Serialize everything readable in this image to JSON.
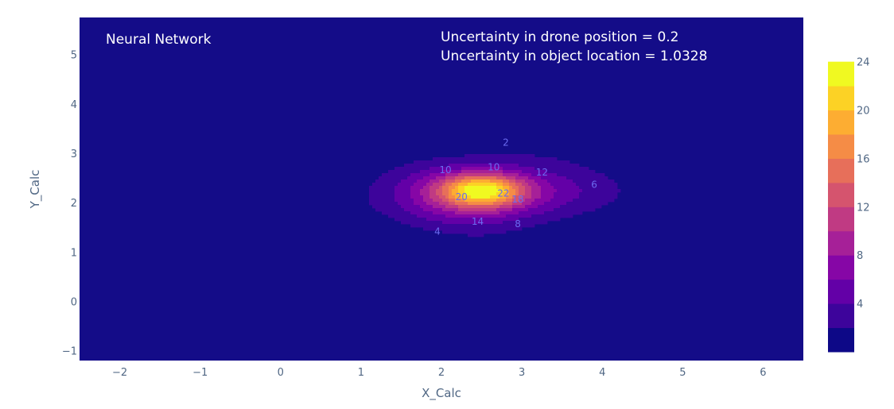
{
  "chart_data": {
    "type": "contour",
    "title": "",
    "xlabel": "X_Calc",
    "ylabel": "Y_Calc",
    "xlim": [
      -2.5,
      6.5
    ],
    "ylim": [
      -1.2,
      5.75
    ],
    "x_ticks": [
      -2,
      -1,
      0,
      1,
      2,
      3,
      4,
      5,
      6
    ],
    "y_ticks": [
      -1,
      0,
      1,
      2,
      3,
      4,
      5
    ],
    "background_color": "#140c88",
    "colorscale": "plasma",
    "colorbar": {
      "range": [
        0,
        27
      ],
      "levels": [
        2,
        4,
        6,
        8,
        10,
        12,
        14,
        16,
        18,
        20,
        22,
        24,
        26
      ],
      "tick_labels": [
        "4",
        "8",
        "12",
        "16",
        "20",
        "24"
      ],
      "colors": [
        "#0d0887",
        "#3d049b",
        "#6300a7",
        "#8606a6",
        "#a62098",
        "#c03a83",
        "#d5546e",
        "#e76f5a",
        "#f58c46",
        "#fdad32",
        "#fcd225",
        "#f0f921"
      ]
    },
    "peak": {
      "x": 2.5,
      "y": 2.25,
      "value": 26
    },
    "contour_labels": [
      {
        "text": "2",
        "x": 2.8,
        "y": 3.15
      },
      {
        "text": "4",
        "x": 1.95,
        "y": 1.35
      },
      {
        "text": "6",
        "x": 3.9,
        "y": 2.3
      },
      {
        "text": "8",
        "x": 2.95,
        "y": 1.5
      },
      {
        "text": "10",
        "x": 2.05,
        "y": 2.6
      },
      {
        "text": "10",
        "x": 2.65,
        "y": 2.65
      },
      {
        "text": "12",
        "x": 3.25,
        "y": 2.55
      },
      {
        "text": "14",
        "x": 2.45,
        "y": 1.55
      },
      {
        "text": "18",
        "x": 2.95,
        "y": 2.0
      },
      {
        "text": "20",
        "x": 2.25,
        "y": 2.05
      },
      {
        "text": "22",
        "x": 2.77,
        "y": 2.12
      }
    ],
    "annotations": {
      "model": "Neural Network",
      "drone_uncertainty": "Uncertainty in drone position  = 0.2",
      "object_uncertainty": "Uncertainty in object location = 1.0328"
    }
  }
}
